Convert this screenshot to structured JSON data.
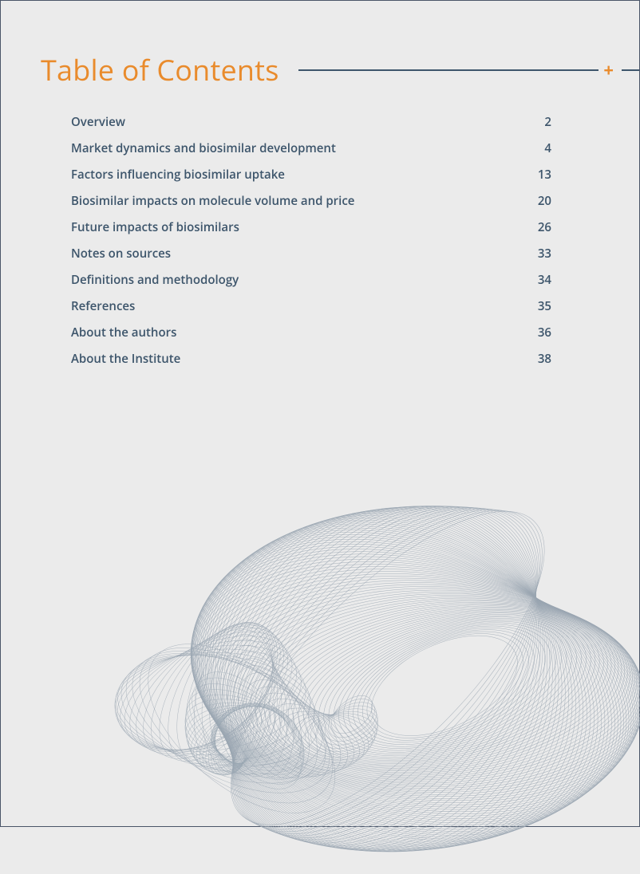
{
  "title": "Table of Contents",
  "title_color": "#e98b2c",
  "rule_color": "#3d556b",
  "plus_glyph": "+",
  "text_color": "#3d556b",
  "background_color": "#ebebeb",
  "border_color": "#4a5568",
  "title_fontsize": 36,
  "entry_fontsize": 15,
  "entry_fontweight": 600,
  "toc": [
    {
      "label": "Overview",
      "page": "2"
    },
    {
      "label": "Market dynamics and biosimilar development",
      "page": "4"
    },
    {
      "label": "Factors influencing biosimilar uptake",
      "page": "13"
    },
    {
      "label": "Biosimilar impacts on molecule volume and price",
      "page": "20"
    },
    {
      "label": "Future impacts of biosimilars",
      "page": "26"
    },
    {
      "label": "Notes on sources",
      "page": "33"
    },
    {
      "label": "Definitions and methodology",
      "page": "34"
    },
    {
      "label": "References",
      "page": "35"
    },
    {
      "label": "About the authors",
      "page": "36"
    },
    {
      "label": "About the Institute",
      "page": "38"
    }
  ],
  "decorative_art": {
    "type": "wireframe-attractor",
    "stroke_color": "#9aa6b2",
    "stroke_width": 0.5,
    "line_count": 90,
    "opacity": 0.85
  }
}
